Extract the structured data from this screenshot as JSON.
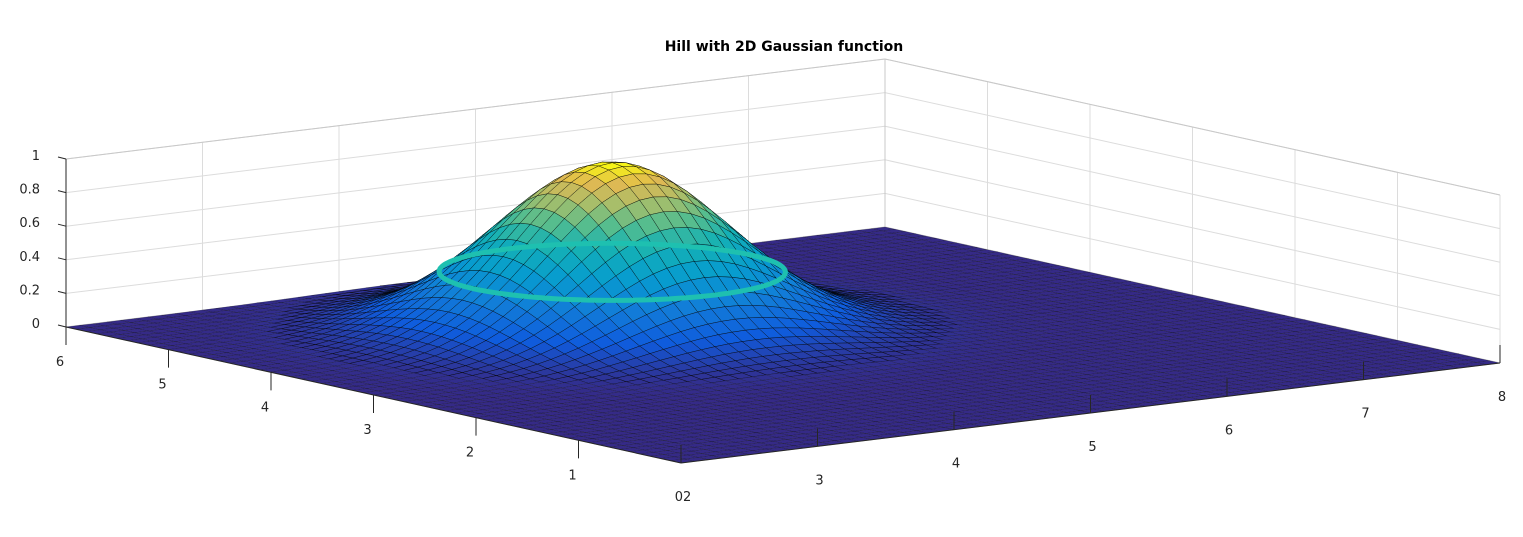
{
  "chart_data": {
    "type": "surface",
    "title": "Hill with 2D Gaussian function",
    "xlabel": "",
    "ylabel": "",
    "zlabel": "",
    "x_range": [
      2,
      8
    ],
    "y_range": [
      0,
      6
    ],
    "z_range": [
      0,
      1
    ],
    "x_ticks": [
      "02",
      "3",
      "4",
      "5",
      "6",
      "7",
      "8"
    ],
    "y_ticks": [
      "0",
      "1",
      "2",
      "3",
      "4",
      "5",
      "6"
    ],
    "z_ticks": [
      "0",
      "0.2",
      "0.4",
      "0.6",
      "0.8",
      "1"
    ],
    "surface": {
      "function": "gaussian",
      "peak_z": 1.0,
      "center": [
        4.5,
        4.0
      ],
      "sigma": [
        0.7,
        0.7
      ],
      "grid_x_count": 60,
      "grid_y_count": 60,
      "colormap": "parula"
    },
    "contour_ring": {
      "z_level": 0.35,
      "color": "#1ec0b0"
    },
    "grid": true,
    "colors": {
      "background": "#ffffff",
      "surface_low": "#352a87",
      "surface_high": "#f9fb0e",
      "mesh_edge": "#000000",
      "ring": "#1ec0b0"
    }
  }
}
